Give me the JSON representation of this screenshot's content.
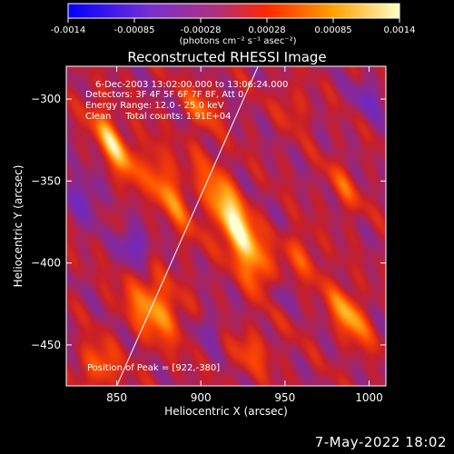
{
  "colorbar": {
    "ticks": [
      "-0.0014",
      "-0.00085",
      "-0.00028",
      "0.00028",
      "0.00085",
      "0.0014"
    ],
    "unit_label": "(photons cm⁻² s⁻¹ asec⁻²)",
    "colors": [
      "#0000ff",
      "#7a2fd0",
      "#b0307a",
      "#ff2800",
      "#ffa000",
      "#ffffc8"
    ]
  },
  "footer_date": "7-May-2022 18:02",
  "chart_data": {
    "type": "heatmap",
    "title": "Reconstructed RHESSI Image",
    "xlabel": "Heliocentric X (arcsec)",
    "ylabel": "Heliocentric Y (arcsec)",
    "xlim": [
      820,
      1010
    ],
    "ylim": [
      -475,
      -280
    ],
    "xticks": [
      850,
      900,
      950,
      1000
    ],
    "yticks": [
      -300,
      -350,
      -400,
      -450
    ],
    "value_range": [
      -0.0014,
      0.0014
    ],
    "annotations": [
      "6-Dec-2003 13:02:00.000 to 13:06:24.000",
      "Detectors: 3F 4F 5F 6F 7F 8F, Att 0",
      "Energy Range: 12.0 - 25.0 keV",
      "Clean     Total counts: 1.91E+04"
    ],
    "peak_label": "Position of Peak = [922,-380]",
    "peak": [
      922,
      -380
    ],
    "limb_line": [
      [
        850,
        -475
      ],
      [
        934,
        -280
      ]
    ],
    "sources": [
      {
        "x": 922,
        "y": -380,
        "amp": 0.0014,
        "sx": 7,
        "sy": 28
      },
      {
        "x": 848,
        "y": -328,
        "amp": 0.0011,
        "sx": 5,
        "sy": 18
      },
      {
        "x": 880,
        "y": -355,
        "amp": 0.0008,
        "sx": 6,
        "sy": 20
      },
      {
        "x": 872,
        "y": -428,
        "amp": 0.0009,
        "sx": 10,
        "sy": 15
      },
      {
        "x": 988,
        "y": -432,
        "amp": 0.00095,
        "sx": 6,
        "sy": 14
      },
      {
        "x": 960,
        "y": -395,
        "amp": 0.0005,
        "sx": 6,
        "sy": 12
      },
      {
        "x": 840,
        "y": -462,
        "amp": 0.0007,
        "sx": 7,
        "sy": 10
      },
      {
        "x": 955,
        "y": -305,
        "amp": 0.0004,
        "sx": 5,
        "sy": 10
      },
      {
        "x": 900,
        "y": -305,
        "amp": 0.0006,
        "sx": 6,
        "sy": 10
      },
      {
        "x": 985,
        "y": -355,
        "amp": 0.0005,
        "sx": 5,
        "sy": 12
      },
      {
        "x": 930,
        "y": -455,
        "amp": 0.00045,
        "sx": 8,
        "sy": 10
      },
      {
        "x": 860,
        "y": -390,
        "amp": -0.0008,
        "sx": 5,
        "sy": 9
      },
      {
        "x": 830,
        "y": -360,
        "amp": -0.0006,
        "sx": 6,
        "sy": 10
      },
      {
        "x": 945,
        "y": -420,
        "amp": -0.0005,
        "sx": 5,
        "sy": 8
      },
      {
        "x": 1000,
        "y": -300,
        "amp": -0.0005,
        "sx": 6,
        "sy": 9
      },
      {
        "x": 905,
        "y": -440,
        "amp": -0.00035,
        "sx": 6,
        "sy": 8
      }
    ]
  }
}
